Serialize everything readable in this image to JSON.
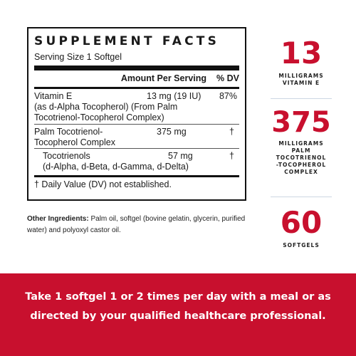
{
  "facts": {
    "title": "SUPPLEMENT FACTS",
    "serving": "Serving Size 1 Softgel",
    "header_amount": "Amount Per Serving",
    "header_dv": "% DV",
    "rows": [
      {
        "name_line1": "Vitamin E",
        "name_line2": "(as d-Alpha Tocopherol) (From Palm",
        "name_line3": "Tocotrienol-Tocopherol Complex)",
        "amount": "13 mg (19 IU)",
        "dv": "87%"
      },
      {
        "name_line1": "Palm Tocotrienol-",
        "name_line2": "Tocopherol Complex",
        "amount": "375 mg",
        "dv": "†"
      },
      {
        "name_line1": "Tocotrienols",
        "name_line2": "(d-Alpha, d-Beta, d-Gamma, d-Delta)",
        "amount": "57 mg",
        "dv": "†"
      }
    ],
    "footnote": "† Daily Value (DV) not established."
  },
  "other": {
    "label": "Other Ingredients:",
    "text": " Palm oil, softgel (bovine gelatin, glycerin, purified water) and polyoxyl castor oil."
  },
  "stats": [
    {
      "number": "13",
      "label": "MILLIGRAMS\nVITAMIN E"
    },
    {
      "number": "375",
      "label": "MILLIGRAMS\nPALM\nTOCOTRIENOL\n-TOCOPHEROL\nCOMPLEX"
    },
    {
      "number": "60",
      "label": "SOFTGELS"
    }
  ],
  "banner": {
    "text": "Take 1 softgel 1 or 2 times per day with a meal or as directed by your qualified healthcare professional."
  },
  "colors": {
    "accent": "#c8102e",
    "text": "#1a1a1a",
    "divider": "#cdd6e3"
  }
}
